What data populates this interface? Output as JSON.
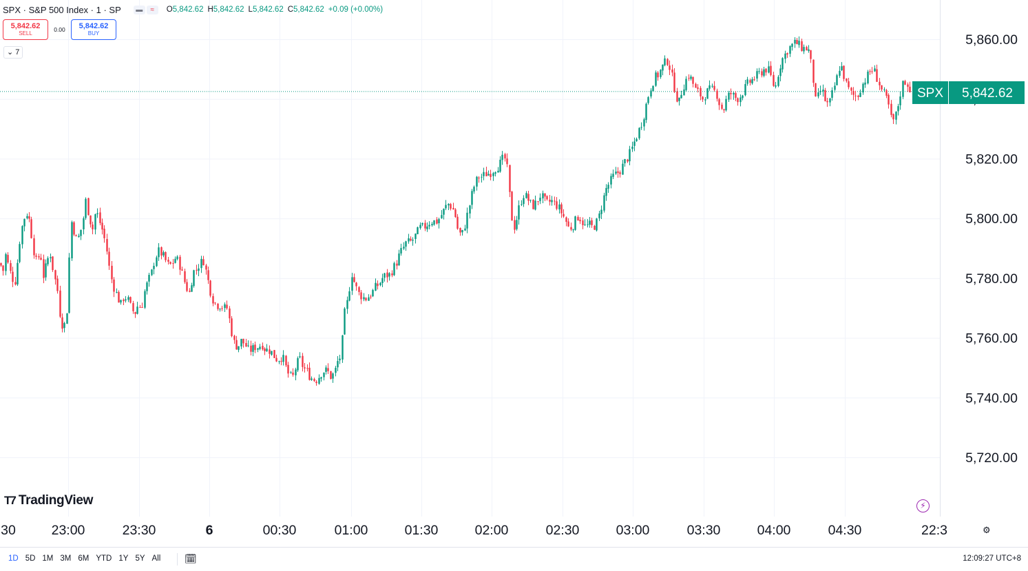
{
  "legend": {
    "symbol": "SPX · S&P 500 Index · 1 · SP",
    "ohlc": [
      {
        "k": "O",
        "v": "5,842.62"
      },
      {
        "k": "H",
        "v": "5,842.62"
      },
      {
        "k": "L",
        "v": "5,842.62"
      },
      {
        "k": "C",
        "v": "5,842.62"
      },
      {
        "k": "",
        "v": "+0.09 (+0.00%)"
      }
    ]
  },
  "trade": {
    "sell_price": "5,842.62",
    "sell_label": "SELL",
    "spread": "0.00",
    "buy_price": "5,842.62",
    "buy_label": "BUY"
  },
  "indicators_badge": "7",
  "logo_text": "TradingView",
  "price_tag": {
    "symbol": "SPX",
    "price": "5,842.62"
  },
  "ranges": [
    "1D",
    "5D",
    "1M",
    "3M",
    "6M",
    "YTD",
    "1Y",
    "5Y",
    "All"
  ],
  "active_range": "1D",
  "clock": "12:09:27 UTC+8",
  "colors": {
    "up": "#089981",
    "down": "#f23645",
    "accent": "#2962ff",
    "grid": "#f0f3fa"
  },
  "chart_data": {
    "type": "candlestick",
    "y_tick_labels": [
      "5,860.00",
      "5,840.00",
      "5,820.00",
      "5,800.00",
      "5,780.00",
      "5,760.00",
      "5,740.00",
      "5,720.00"
    ],
    "y_ticks": [
      5860,
      5840,
      5820,
      5800,
      5780,
      5760,
      5740,
      5720
    ],
    "ylim": [
      5705.5,
      5861
    ],
    "x_tick_labels": [
      "30",
      "23:00",
      "23:30",
      "6",
      "00:30",
      "01:00",
      "01:30",
      "02:00",
      "02:30",
      "03:00",
      "03:30",
      "04:00",
      "04:30",
      "22:3"
    ],
    "last_price": 5842.62,
    "close_path": [
      [
        0,
        5785
      ],
      [
        4,
        5782
      ],
      [
        8,
        5788
      ],
      [
        12,
        5784
      ],
      [
        17,
        5780
      ],
      [
        22,
        5779
      ],
      [
        28,
        5792
      ],
      [
        33,
        5799
      ],
      [
        38,
        5802
      ],
      [
        43,
        5799
      ],
      [
        48,
        5790
      ],
      [
        53,
        5785
      ],
      [
        58,
        5789
      ],
      [
        63,
        5780
      ],
      [
        68,
        5786
      ],
      [
        73,
        5788
      ],
      [
        78,
        5781
      ],
      [
        83,
        5776
      ],
      [
        88,
        5765
      ],
      [
        93,
        5764
      ],
      [
        98,
        5771
      ],
      [
        102,
        5800
      ],
      [
        106,
        5797
      ],
      [
        110,
        5793
      ],
      [
        115,
        5794
      ],
      [
        120,
        5799
      ],
      [
        124,
        5806
      ],
      [
        129,
        5801
      ],
      [
        134,
        5796
      ],
      [
        139,
        5803
      ],
      [
        144,
        5799
      ],
      [
        150,
        5795
      ],
      [
        155,
        5789
      ],
      [
        160,
        5781
      ],
      [
        165,
        5777
      ],
      [
        170,
        5774
      ],
      [
        175,
        5771
      ],
      [
        180,
        5774
      ],
      [
        185,
        5773
      ],
      [
        190,
        5770
      ],
      [
        195,
        5768
      ],
      [
        200,
        5771
      ],
      [
        205,
        5770
      ],
      [
        210,
        5776
      ],
      [
        215,
        5779
      ],
      [
        220,
        5782
      ],
      [
        225,
        5787
      ],
      [
        230,
        5789
      ],
      [
        235,
        5788
      ],
      [
        240,
        5786
      ],
      [
        245,
        5784
      ],
      [
        250,
        5785
      ],
      [
        255,
        5787
      ],
      [
        260,
        5785
      ],
      [
        265,
        5781
      ],
      [
        270,
        5777
      ],
      [
        275,
        5775
      ],
      [
        280,
        5782
      ],
      [
        285,
        5783
      ],
      [
        290,
        5785
      ],
      [
        295,
        5786
      ],
      [
        300,
        5781
      ],
      [
        305,
        5776
      ],
      [
        310,
        5772
      ],
      [
        315,
        5771
      ],
      [
        320,
        5771
      ],
      [
        325,
        5770
      ],
      [
        330,
        5770
      ],
      [
        335,
        5763
      ],
      [
        340,
        5758
      ],
      [
        345,
        5757
      ],
      [
        350,
        5759
      ],
      [
        355,
        5758
      ],
      [
        360,
        5756
      ],
      [
        365,
        5756
      ],
      [
        370,
        5757
      ],
      [
        375,
        5757
      ],
      [
        380,
        5758
      ],
      [
        385,
        5756
      ],
      [
        390,
        5756
      ],
      [
        395,
        5755
      ],
      [
        400,
        5753
      ],
      [
        405,
        5753
      ],
      [
        410,
        5754
      ],
      [
        415,
        5750
      ],
      [
        420,
        5747
      ],
      [
        425,
        5747
      ],
      [
        430,
        5751
      ],
      [
        435,
        5753
      ],
      [
        440,
        5750
      ],
      [
        445,
        5749
      ],
      [
        450,
        5747
      ],
      [
        455,
        5746
      ],
      [
        460,
        5746
      ],
      [
        465,
        5748
      ],
      [
        470,
        5749
      ],
      [
        475,
        5749
      ],
      [
        480,
        5747
      ],
      [
        485,
        5748
      ],
      [
        490,
        5752
      ],
      [
        495,
        5754
      ],
      [
        500,
        5768
      ],
      [
        505,
        5773
      ],
      [
        510,
        5782
      ],
      [
        515,
        5778
      ],
      [
        520,
        5775
      ],
      [
        525,
        5774
      ],
      [
        530,
        5773
      ],
      [
        535,
        5774
      ],
      [
        540,
        5775
      ],
      [
        545,
        5777
      ],
      [
        550,
        5778
      ],
      [
        555,
        5780
      ],
      [
        560,
        5781
      ],
      [
        565,
        5781
      ],
      [
        570,
        5783
      ],
      [
        575,
        5785
      ],
      [
        580,
        5788
      ],
      [
        585,
        5790
      ],
      [
        590,
        5792
      ],
      [
        595,
        5792
      ],
      [
        600,
        5793
      ],
      [
        605,
        5795
      ],
      [
        610,
        5797
      ],
      [
        615,
        5797
      ],
      [
        620,
        5798
      ],
      [
        625,
        5799
      ],
      [
        630,
        5799
      ],
      [
        635,
        5799
      ],
      [
        640,
        5801
      ],
      [
        645,
        5803
      ],
      [
        650,
        5805
      ],
      [
        655,
        5804
      ],
      [
        660,
        5802
      ],
      [
        665,
        5796
      ],
      [
        670,
        5794
      ],
      [
        675,
        5798
      ],
      [
        680,
        5803
      ],
      [
        685,
        5808
      ],
      [
        690,
        5812
      ],
      [
        695,
        5814
      ],
      [
        700,
        5814
      ],
      [
        705,
        5815
      ],
      [
        710,
        5815
      ],
      [
        715,
        5816
      ],
      [
        720,
        5817
      ],
      [
        725,
        5818
      ],
      [
        730,
        5820
      ],
      [
        735,
        5820
      ],
      [
        740,
        5807
      ],
      [
        745,
        5796
      ],
      [
        750,
        5800
      ],
      [
        755,
        5805
      ],
      [
        760,
        5808
      ],
      [
        765,
        5807
      ],
      [
        770,
        5805
      ],
      [
        775,
        5804
      ],
      [
        780,
        5806
      ],
      [
        785,
        5808
      ],
      [
        790,
        5806
      ],
      [
        795,
        5805
      ],
      [
        800,
        5806
      ],
      [
        805,
        5805
      ],
      [
        810,
        5804
      ],
      [
        815,
        5802
      ],
      [
        820,
        5800
      ],
      [
        825,
        5797
      ],
      [
        830,
        5797
      ],
      [
        835,
        5799
      ],
      [
        840,
        5801
      ],
      [
        845,
        5799
      ],
      [
        850,
        5797
      ],
      [
        855,
        5798
      ],
      [
        860,
        5797
      ],
      [
        865,
        5798
      ],
      [
        870,
        5801
      ],
      [
        875,
        5806
      ],
      [
        880,
        5810
      ],
      [
        885,
        5812
      ],
      [
        890,
        5814
      ],
      [
        895,
        5815
      ],
      [
        900,
        5816
      ],
      [
        905,
        5818
      ],
      [
        910,
        5820
      ],
      [
        915,
        5822
      ],
      [
        920,
        5825
      ],
      [
        925,
        5828
      ],
      [
        930,
        5831
      ],
      [
        935,
        5835
      ],
      [
        940,
        5840
      ],
      [
        945,
        5844
      ],
      [
        950,
        5847
      ],
      [
        955,
        5848
      ],
      [
        960,
        5850
      ],
      [
        965,
        5852
      ],
      [
        970,
        5853
      ],
      [
        975,
        5848
      ],
      [
        980,
        5843
      ],
      [
        985,
        5838
      ],
      [
        990,
        5843
      ],
      [
        995,
        5846
      ],
      [
        1000,
        5848
      ],
      [
        1005,
        5846
      ],
      [
        1010,
        5843
      ],
      [
        1015,
        5842
      ],
      [
        1020,
        5840
      ],
      [
        1025,
        5842
      ],
      [
        1030,
        5843
      ],
      [
        1035,
        5843
      ],
      [
        1040,
        5842
      ],
      [
        1045,
        5838
      ],
      [
        1050,
        5836
      ],
      [
        1055,
        5840
      ],
      [
        1060,
        5842
      ],
      [
        1065,
        5841
      ],
      [
        1070,
        5840
      ],
      [
        1075,
        5841
      ],
      [
        1080,
        5843
      ],
      [
        1085,
        5845
      ],
      [
        1090,
        5846
      ],
      [
        1095,
        5847
      ],
      [
        1100,
        5848
      ],
      [
        1105,
        5849
      ],
      [
        1110,
        5850
      ],
      [
        1115,
        5850
      ],
      [
        1120,
        5847
      ],
      [
        1125,
        5843
      ],
      [
        1130,
        5849
      ],
      [
        1135,
        5853
      ],
      [
        1140,
        5855
      ],
      [
        1145,
        5857
      ],
      [
        1150,
        5858
      ],
      [
        1155,
        5859
      ],
      [
        1160,
        5858
      ],
      [
        1165,
        5857
      ],
      [
        1170,
        5857
      ],
      [
        1175,
        5856
      ],
      [
        1180,
        5848
      ],
      [
        1185,
        5838
      ],
      [
        1190,
        5843
      ],
      [
        1195,
        5842
      ],
      [
        1200,
        5838
      ],
      [
        1205,
        5839
      ],
      [
        1210,
        5843
      ],
      [
        1215,
        5847
      ],
      [
        1220,
        5852
      ],
      [
        1225,
        5848
      ],
      [
        1230,
        5844
      ],
      [
        1235,
        5842
      ],
      [
        1240,
        5841
      ],
      [
        1245,
        5841
      ],
      [
        1250,
        5844
      ],
      [
        1255,
        5846
      ],
      [
        1260,
        5848
      ],
      [
        1265,
        5850
      ],
      [
        1270,
        5849
      ],
      [
        1275,
        5846
      ],
      [
        1280,
        5843
      ],
      [
        1285,
        5841
      ],
      [
        1290,
        5838
      ],
      [
        1295,
        5832
      ],
      [
        1300,
        5834
      ],
      [
        1305,
        5839
      ],
      [
        1310,
        5845
      ],
      [
        1315,
        5846
      ],
      [
        1320,
        5844
      ],
      [
        1323,
        5842.62
      ]
    ]
  }
}
